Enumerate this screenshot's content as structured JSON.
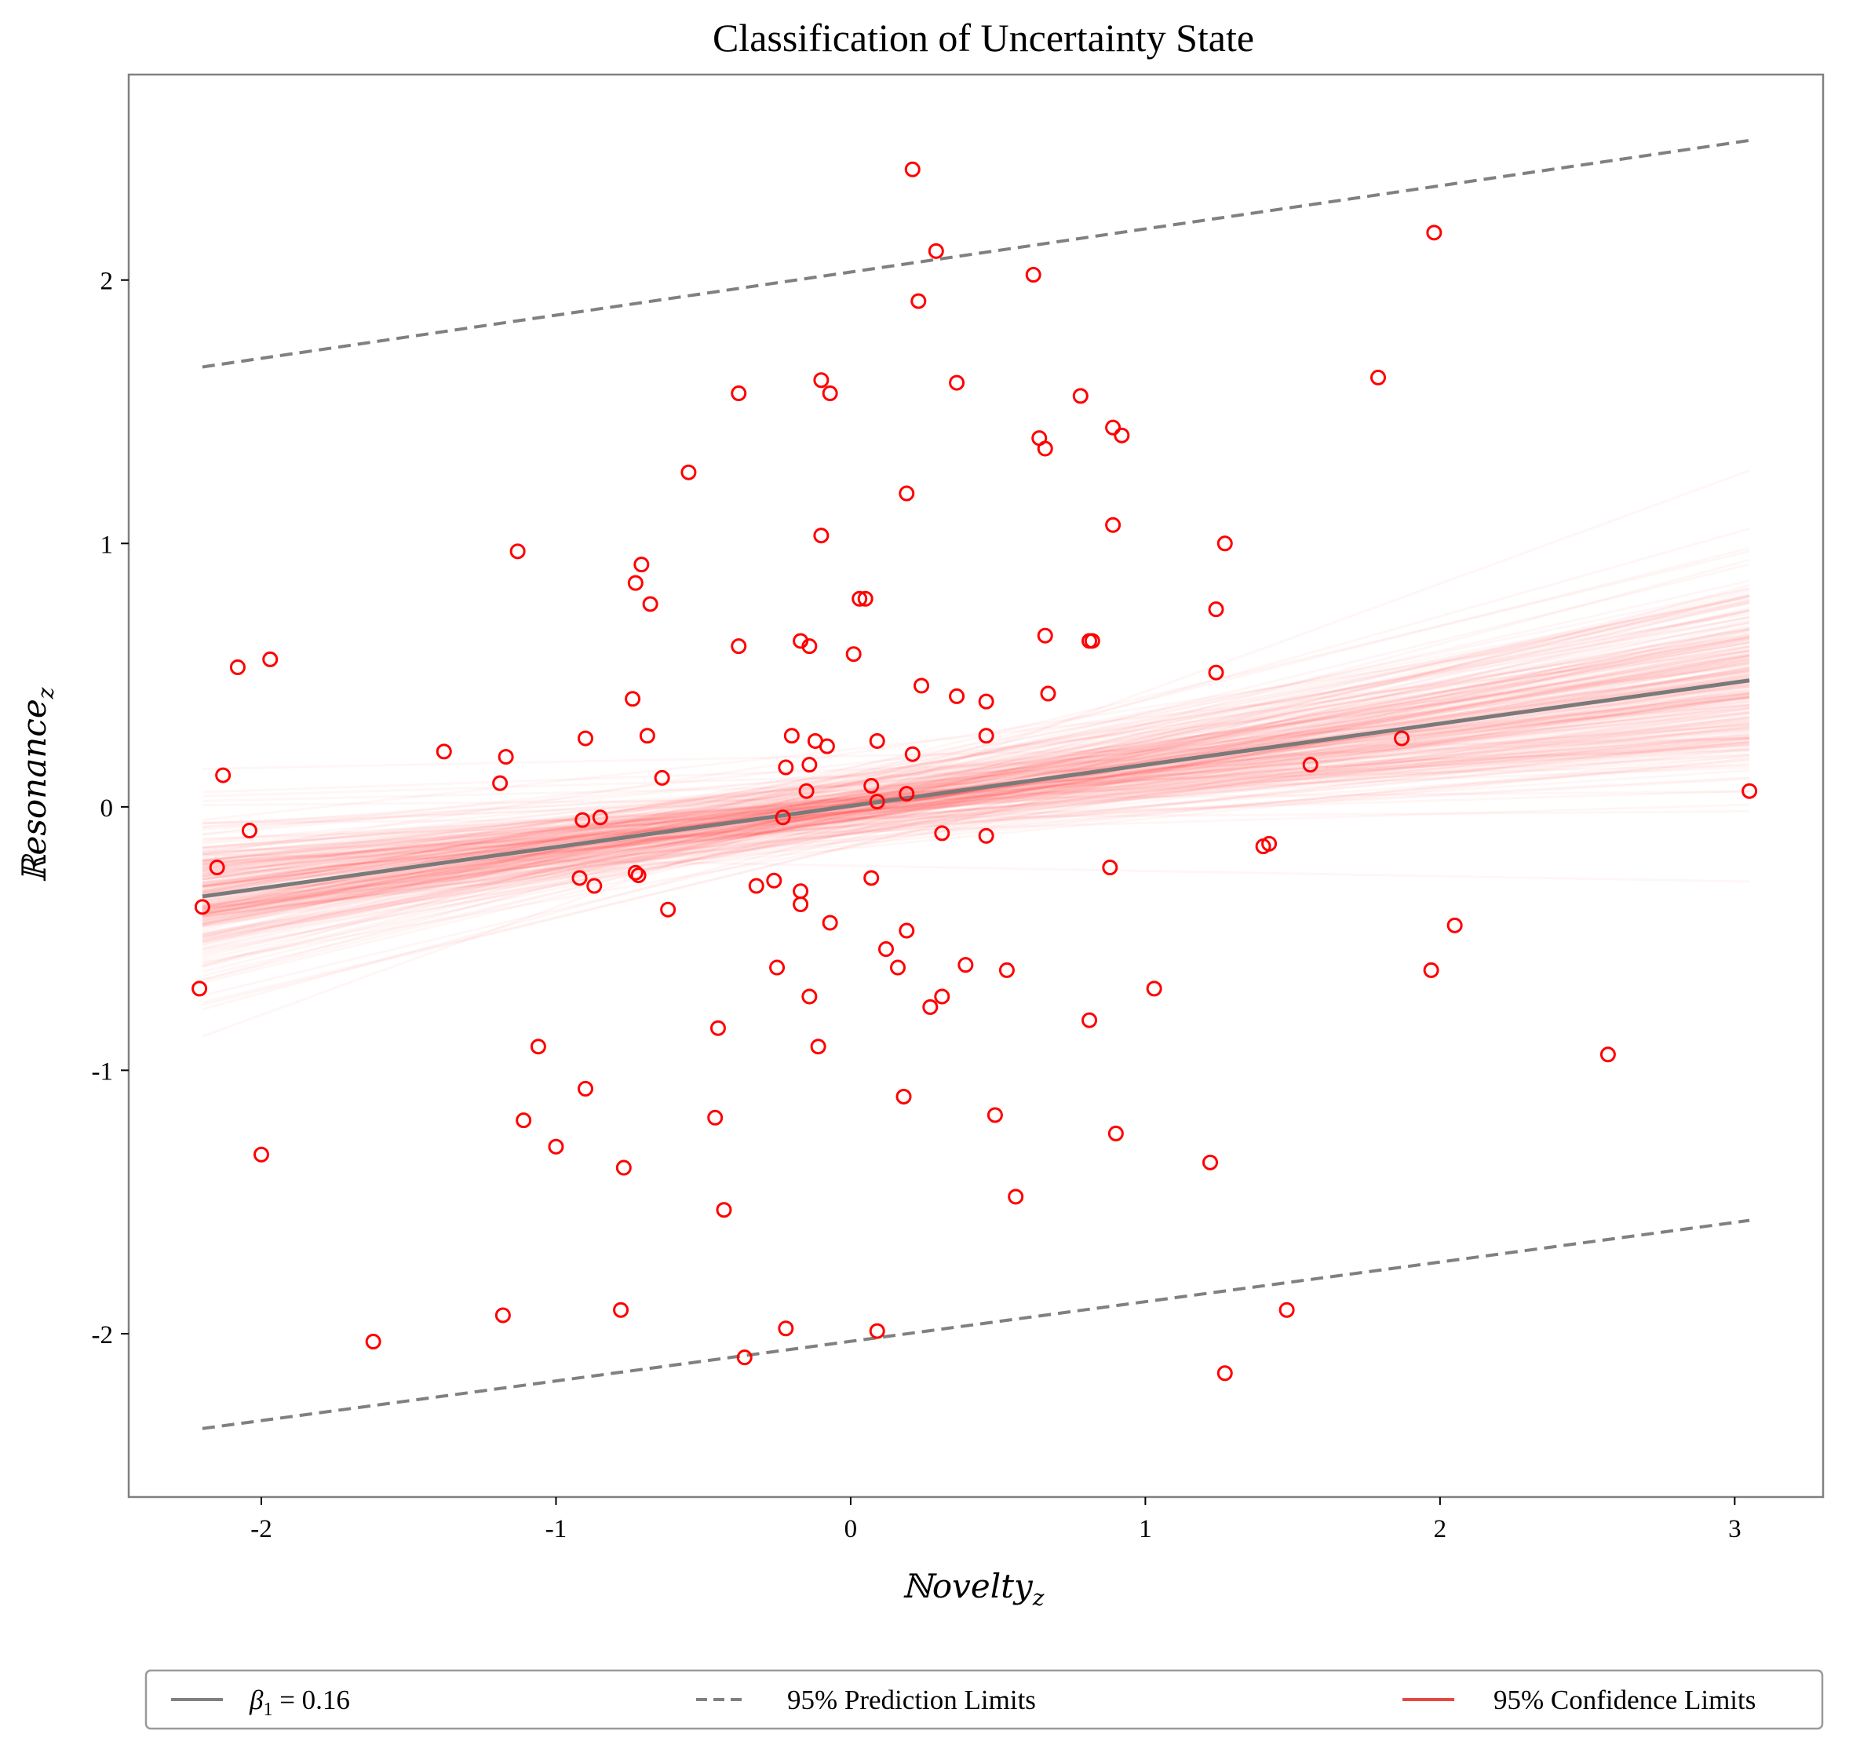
{
  "chart_data": {
    "type": "scatter",
    "title": "Classification of Uncertainty State",
    "xlabel": "ℕovelty",
    "xlabel_sub": "z",
    "ylabel": "ℝesonance",
    "ylabel_sub": "z",
    "xlim": [
      -2.45,
      3.3
    ],
    "ylim": [
      -2.62,
      2.78
    ],
    "xticks": [
      -2,
      -1,
      0,
      1,
      2,
      3
    ],
    "xtick_labels": [
      "-2",
      "-1",
      "0",
      "1",
      "2",
      "3"
    ],
    "yticks": [
      -2,
      -1,
      0,
      1,
      2
    ],
    "ytick_labels": [
      "-2",
      "-1",
      "0",
      "1",
      "2"
    ],
    "grid": false,
    "legend_position": "bottom",
    "fit_line": {
      "x": [
        -2.2,
        3.05
      ],
      "y": [
        -0.34,
        0.48
      ],
      "color": "#808080"
    },
    "prediction_upper": {
      "x": [
        -2.2,
        3.05
      ],
      "y": [
        1.67,
        2.53
      ],
      "color": "#808080"
    },
    "prediction_lower": {
      "x": [
        -2.2,
        3.05
      ],
      "y": [
        -2.36,
        -1.57
      ],
      "color": "#808080"
    },
    "confidence_band": {
      "x_range": [
        -2.2,
        3.05
      ],
      "color": "#ff0000"
    },
    "points_color": "#ff0000",
    "legend": [
      {
        "label": "β",
        "label_sub": "1",
        "label_rest": " = 0.16",
        "style": "solid",
        "color": "#808080"
      },
      {
        "label": "95% Prediction Limits",
        "style": "dashed",
        "color": "#808080"
      },
      {
        "label": "95% Confidence Limits",
        "style": "solid",
        "color": "#e8473f"
      }
    ],
    "points": [
      [
        0.21,
        2.42
      ],
      [
        0.29,
        2.11
      ],
      [
        0.62,
        2.02
      ],
      [
        0.23,
        1.92
      ],
      [
        1.98,
        2.18
      ],
      [
        -0.38,
        1.57
      ],
      [
        -0.1,
        1.62
      ],
      [
        -0.07,
        1.57
      ],
      [
        0.36,
        1.61
      ],
      [
        0.78,
        1.56
      ],
      [
        1.79,
        1.63
      ],
      [
        0.64,
        1.4
      ],
      [
        0.66,
        1.36
      ],
      [
        0.89,
        1.44
      ],
      [
        0.92,
        1.41
      ],
      [
        -0.55,
        1.27
      ],
      [
        0.19,
        1.19
      ],
      [
        -0.1,
        1.03
      ],
      [
        0.89,
        1.07
      ],
      [
        1.27,
        1.0
      ],
      [
        -1.13,
        0.97
      ],
      [
        -0.71,
        0.92
      ],
      [
        -0.73,
        0.85
      ],
      [
        -0.68,
        0.77
      ],
      [
        0.03,
        0.79
      ],
      [
        0.05,
        0.79
      ],
      [
        1.24,
        0.75
      ],
      [
        -0.38,
        0.61
      ],
      [
        -0.17,
        0.63
      ],
      [
        -0.14,
        0.61
      ],
      [
        0.01,
        0.58
      ],
      [
        0.66,
        0.65
      ],
      [
        0.81,
        0.63
      ],
      [
        0.82,
        0.63
      ],
      [
        -2.08,
        0.53
      ],
      [
        -1.97,
        0.56
      ],
      [
        1.24,
        0.51
      ],
      [
        0.24,
        0.46
      ],
      [
        0.36,
        0.42
      ],
      [
        0.46,
        0.4
      ],
      [
        0.67,
        0.43
      ],
      [
        -0.74,
        0.41
      ],
      [
        -0.69,
        0.27
      ],
      [
        -0.9,
        0.26
      ],
      [
        -0.2,
        0.27
      ],
      [
        -0.12,
        0.25
      ],
      [
        -0.08,
        0.23
      ],
      [
        0.09,
        0.25
      ],
      [
        0.46,
        0.27
      ],
      [
        1.87,
        0.26
      ],
      [
        -1.38,
        0.21
      ],
      [
        -1.17,
        0.19
      ],
      [
        0.21,
        0.2
      ],
      [
        -2.13,
        0.12
      ],
      [
        -1.19,
        0.09
      ],
      [
        -0.64,
        0.11
      ],
      [
        -0.22,
        0.15
      ],
      [
        -0.14,
        0.16
      ],
      [
        1.56,
        0.16
      ],
      [
        -0.15,
        0.06
      ],
      [
        0.07,
        0.08
      ],
      [
        0.19,
        0.05
      ],
      [
        0.09,
        0.02
      ],
      [
        3.05,
        0.06
      ],
      [
        -0.23,
        -0.04
      ],
      [
        -0.91,
        -0.05
      ],
      [
        -0.85,
        -0.04
      ],
      [
        -2.04,
        -0.09
      ],
      [
        0.31,
        -0.1
      ],
      [
        0.46,
        -0.11
      ],
      [
        1.4,
        -0.15
      ],
      [
        1.42,
        -0.14
      ],
      [
        -2.15,
        -0.23
      ],
      [
        -0.73,
        -0.25
      ],
      [
        -0.72,
        -0.26
      ],
      [
        -0.92,
        -0.27
      ],
      [
        -0.87,
        -0.3
      ],
      [
        -0.32,
        -0.3
      ],
      [
        -0.26,
        -0.28
      ],
      [
        0.07,
        -0.27
      ],
      [
        0.88,
        -0.23
      ],
      [
        -0.17,
        -0.32
      ],
      [
        -0.17,
        -0.37
      ],
      [
        -2.2,
        -0.38
      ],
      [
        -0.62,
        -0.39
      ],
      [
        -0.07,
        -0.44
      ],
      [
        0.19,
        -0.47
      ],
      [
        2.05,
        -0.45
      ],
      [
        0.12,
        -0.54
      ],
      [
        0.16,
        -0.61
      ],
      [
        0.39,
        -0.6
      ],
      [
        0.53,
        -0.62
      ],
      [
        -0.25,
        -0.61
      ],
      [
        1.97,
        -0.62
      ],
      [
        -2.21,
        -0.69
      ],
      [
        1.03,
        -0.69
      ],
      [
        -0.14,
        -0.72
      ],
      [
        0.27,
        -0.76
      ],
      [
        0.31,
        -0.72
      ],
      [
        0.81,
        -0.81
      ],
      [
        -0.45,
        -0.84
      ],
      [
        -1.06,
        -0.91
      ],
      [
        -0.11,
        -0.91
      ],
      [
        2.57,
        -0.94
      ],
      [
        -0.9,
        -1.07
      ],
      [
        0.18,
        -1.1
      ],
      [
        -1.11,
        -1.19
      ],
      [
        -0.46,
        -1.18
      ],
      [
        0.49,
        -1.17
      ],
      [
        0.9,
        -1.24
      ],
      [
        -1.0,
        -1.29
      ],
      [
        -2.0,
        -1.32
      ],
      [
        -0.77,
        -1.37
      ],
      [
        1.22,
        -1.35
      ],
      [
        -0.43,
        -1.53
      ],
      [
        0.56,
        -1.48
      ],
      [
        -1.18,
        -1.93
      ],
      [
        -0.78,
        -1.91
      ],
      [
        1.48,
        -1.91
      ],
      [
        -1.62,
        -2.03
      ],
      [
        -0.22,
        -1.98
      ],
      [
        0.09,
        -1.99
      ],
      [
        -0.36,
        -2.09
      ],
      [
        1.27,
        -2.15
      ]
    ]
  }
}
